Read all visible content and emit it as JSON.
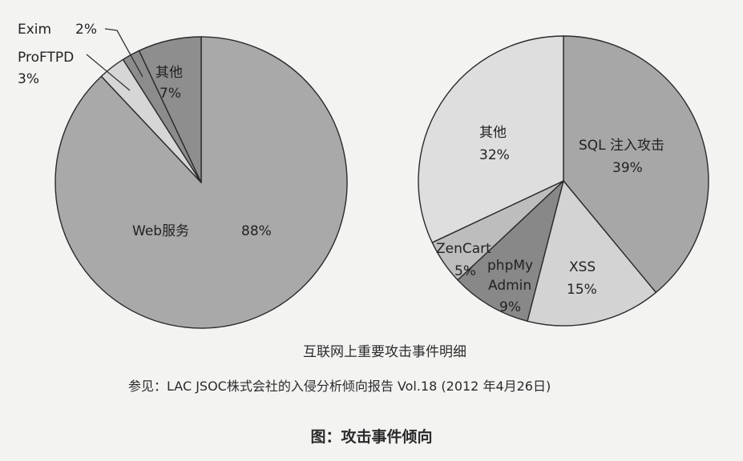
{
  "chart_data": [
    {
      "type": "pie",
      "slices": [
        {
          "label": "Web服务",
          "value": 88,
          "value_text": "88%",
          "color": "#a9a9a9"
        },
        {
          "label": "ProFTPD",
          "value": 3,
          "value_text": "3%",
          "color": "#d6d6d6"
        },
        {
          "label": "Exim",
          "value": 2,
          "value_text": "2%",
          "color": "#8c8c8c"
        },
        {
          "label": "其他",
          "value": 7,
          "value_text": "7%",
          "color": "#8e8e8e"
        }
      ]
    },
    {
      "type": "pie",
      "slices": [
        {
          "label": "SQL注入攻击",
          "value": 39,
          "value_text": "39%",
          "color": "#a7a7a7"
        },
        {
          "label": "XSS",
          "value": 15,
          "value_text": "15%",
          "color": "#d3d3d3"
        },
        {
          "label": "phpMy Admin",
          "value": 9,
          "value_text": "9%",
          "color": "#888888"
        },
        {
          "label": "ZenCart",
          "value": 5,
          "value_text": "5%",
          "color": "#bdbdbd"
        },
        {
          "label": "其他",
          "value": 32,
          "value_text": "32%",
          "color": "#dedede"
        }
      ]
    }
  ],
  "labels": {
    "left": {
      "web_name": "Web服务",
      "web_pct": "88%",
      "proftpd_name": "ProFTPD",
      "proftpd_pct": "3%",
      "exim_name": "Exim",
      "exim_pct": "2%",
      "other_name": "其他",
      "other_pct": "7%"
    },
    "right": {
      "sql_name": "SQL 注入攻击",
      "sql_pct": "39%",
      "xss_name": "XSS",
      "xss_pct": "15%",
      "php_line1": "phpMy",
      "php_line2": "Admin",
      "php_pct": "9%",
      "zen_name": "ZenCart",
      "zen_pct": "5%",
      "other_name": "其他",
      "other_pct": "32%"
    }
  },
  "chart_title": "互联网上重要攻击事件明细",
  "source_note": "参见：LAC JSOC株式会社的入侵分析倾向报告 Vol.18 (2012 年4月26日)",
  "figure_caption": "图：攻击事件倾向"
}
